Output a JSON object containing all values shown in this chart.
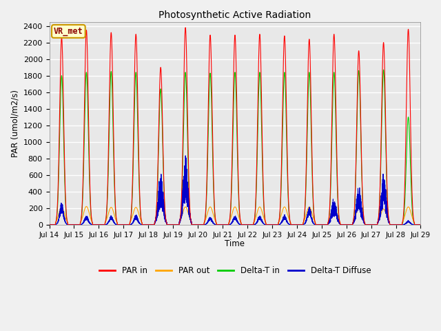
{
  "title": "Photosynthetic Active Radiation",
  "ylabel": "PAR (umol/m2/s)",
  "xlabel": "Time",
  "annotation": "VR_met",
  "ylim": [
    0,
    2450
  ],
  "yticks": [
    0,
    200,
    400,
    600,
    800,
    1000,
    1200,
    1400,
    1600,
    1800,
    2000,
    2200,
    2400
  ],
  "xtick_labels": [
    "Jul 14",
    "Jul 15",
    "Jul 16",
    "Jul 17",
    "Jul 18",
    "Jul 19",
    "Jul 20",
    "Jul 21",
    "Jul 22",
    "Jul 23",
    "Jul 24",
    "Jul 25",
    "Jul 26",
    "Jul 27",
    "Jul 28",
    "Jul 29"
  ],
  "fig_bg_color": "#f0f0f0",
  "plot_bg_color": "#e8e8e8",
  "grid_color": "#ffffff",
  "colors": {
    "PAR_in": "#ff0000",
    "PAR_out": "#ffa500",
    "Delta_T_in": "#00cc00",
    "Delta_T_Diffuse": "#0000cc"
  },
  "legend_labels": [
    "PAR in",
    "PAR out",
    "Delta-T in",
    "Delta-T Diffuse"
  ],
  "par_in_peaks": [
    2260,
    2350,
    2320,
    2300,
    1900,
    2380,
    2290,
    2290,
    2300,
    2280,
    2240,
    2300,
    2100,
    2200,
    2360
  ],
  "par_out_peaks": [
    210,
    220,
    210,
    210,
    240,
    215,
    215,
    215,
    215,
    215,
    215,
    230,
    200,
    190,
    215
  ],
  "dtin_peaks": [
    1800,
    1840,
    1850,
    1840,
    1640,
    1840,
    1830,
    1840,
    1840,
    1840,
    1840,
    1840,
    1860,
    1870,
    1300
  ],
  "dtdiff_peaks": [
    270,
    110,
    110,
    120,
    650,
    840,
    95,
    110,
    110,
    120,
    220,
    330,
    480,
    640,
    50
  ],
  "n_days": 15,
  "pts_per_day": 288
}
